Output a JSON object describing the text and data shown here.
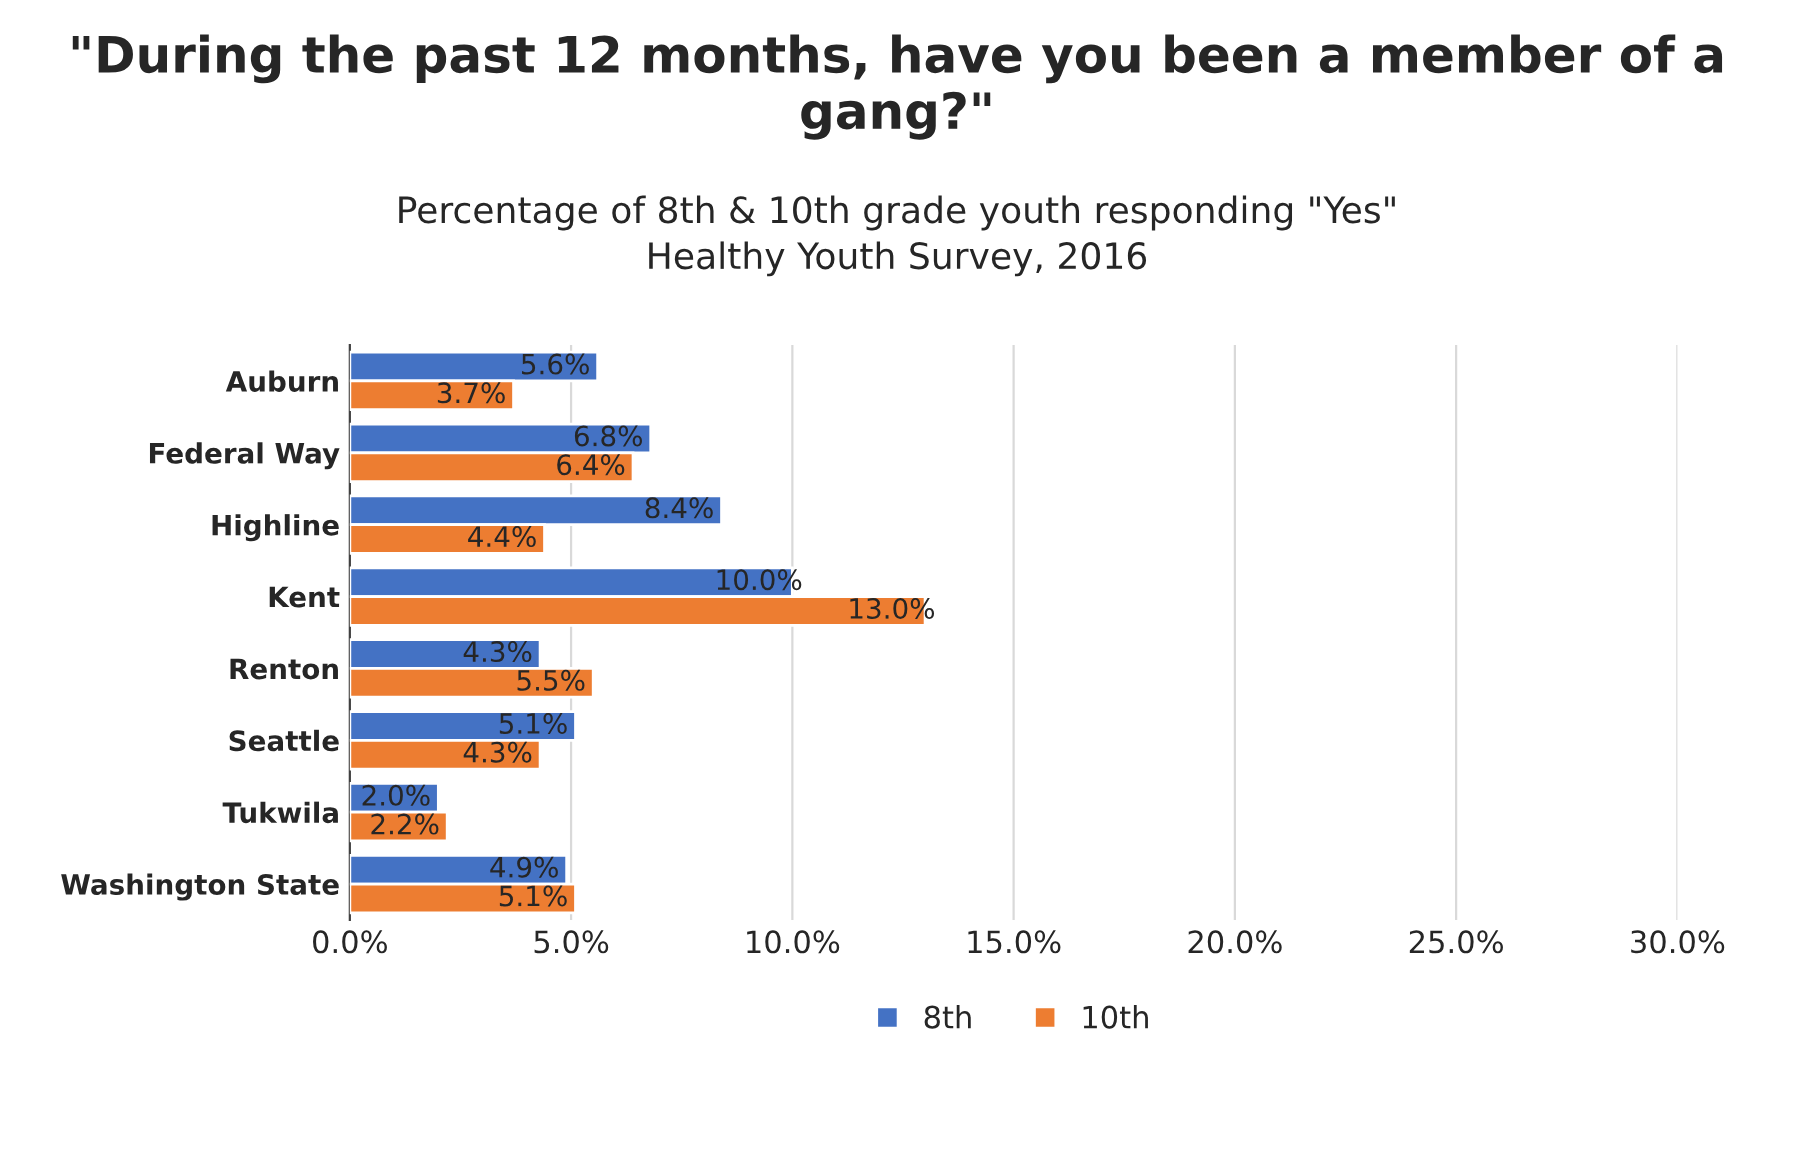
{
  "chart_data": {
    "type": "bar",
    "orientation": "horizontal",
    "title": "\"During the past 12 months, have you been a member of a gang?\"",
    "subtitle": "Percentage of 8th & 10th grade youth responding \"Yes\"\nHealthy Youth Survey, 2016",
    "categories": [
      "Auburn",
      "Federal Way",
      "Highline",
      "Kent",
      "Renton",
      "Seattle",
      "Tukwila",
      "Washington State"
    ],
    "series": [
      {
        "name": "8th",
        "color": "#4472c4",
        "values": [
          5.6,
          6.8,
          8.4,
          10.0,
          4.3,
          5.1,
          2.0,
          4.9
        ],
        "value_labels": [
          "5.6%",
          "6.8%",
          "8.4%",
          "10.0%",
          "4.3%",
          "5.1%",
          "2.0%",
          "4.9%"
        ]
      },
      {
        "name": "10th",
        "color": "#ed7d31",
        "values": [
          3.7,
          6.4,
          4.4,
          13.0,
          5.5,
          4.3,
          2.2,
          5.1
        ],
        "value_labels": [
          "3.7%",
          "6.4%",
          "4.4%",
          "13.0%",
          "5.5%",
          "4.3%",
          "2.2%",
          "5.1%"
        ]
      }
    ],
    "xlim": [
      0,
      30
    ],
    "xticks": [
      {
        "value": 0,
        "label": "0.0%"
      },
      {
        "value": 5,
        "label": "5.0%"
      },
      {
        "value": 10,
        "label": "10.0%"
      },
      {
        "value": 15,
        "label": "15.0%"
      },
      {
        "value": 20,
        "label": "20.0%"
      },
      {
        "value": 25,
        "label": "25.0%"
      },
      {
        "value": 30,
        "label": "30.0%"
      }
    ],
    "grid": "x",
    "legend": "bottom"
  }
}
